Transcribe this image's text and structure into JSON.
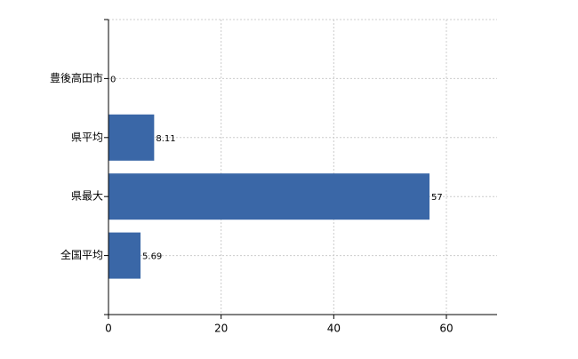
{
  "chart_data": {
    "type": "bar",
    "orientation": "horizontal",
    "categories": [
      "豊後高田市",
      "県平均",
      "県最大",
      "全国平均"
    ],
    "values": [
      0,
      8.11,
      57,
      5.69
    ],
    "color": "#3a67a7",
    "xlim": [
      0,
      69
    ],
    "xticks": [
      0,
      20,
      40,
      60
    ],
    "grid": true
  }
}
